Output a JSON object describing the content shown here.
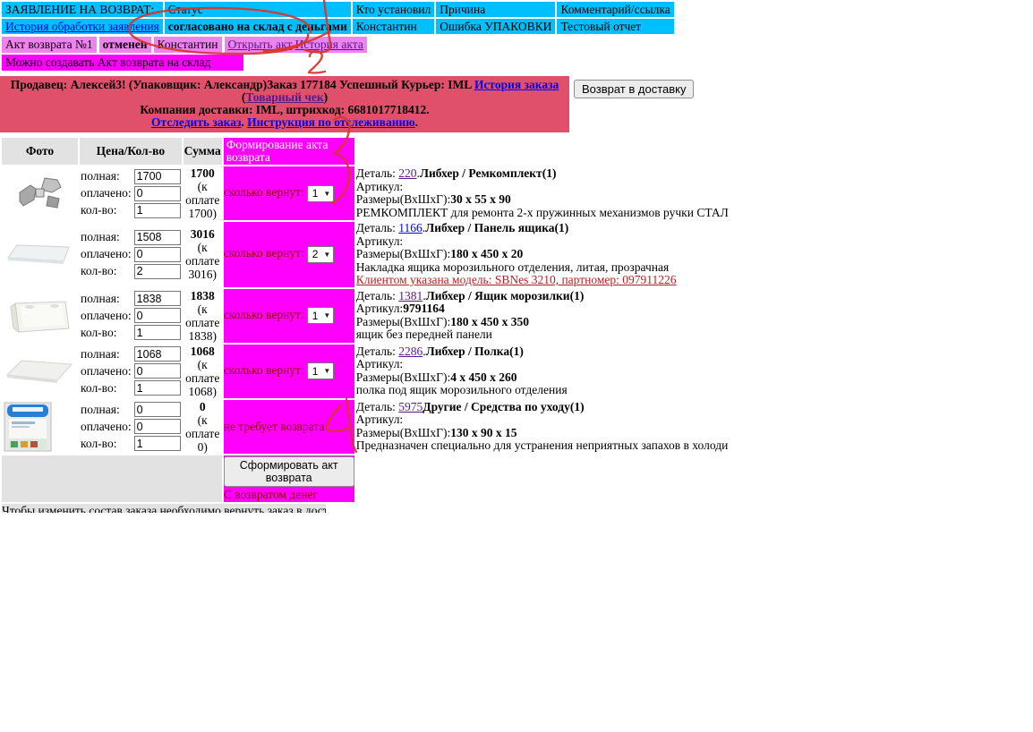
{
  "app_table": {
    "title": "ЗАЯВЛЕНИЕ НА ВОЗВРАТ:",
    "col_status": "Статус",
    "col_who": "Кто установил",
    "col_reason": "Причина",
    "col_comment": "Комментарий/ссылка",
    "history_link": "История обработки заявления",
    "status_value": "согласовано на склад с деньгами",
    "who_value": "Константин",
    "reason_value": "Ошибка УПАКОВКИ",
    "comment_value": "Тестовый отчет"
  },
  "act_table": {
    "act_label": "Акт возврата №1",
    "act_status": "отменен",
    "act_who": "Константин",
    "open_act_link": "Открыть акт",
    "act_history_link": "История акта",
    "can_create_text": "Можно создавать Акт возврата на склад"
  },
  "banner": {
    "line1_text": "Продавец: Алексей3! (Упаковщик: Александр)Заказ 177184 Успешный Курьер: IML ",
    "order_history_link": "История заказа",
    "paren_open": " (",
    "receipt_link": "Товарный чек",
    "paren_close": ")",
    "line2": "Компания доставки: IML, штрихкод: 6681017718412.",
    "track_link": "Отследить заказ",
    "dot1": ". ",
    "instruction_link": "Инструкция по отслеживанию",
    "dot2": "."
  },
  "return_to_delivery_button": "Возврат в доставку",
  "items": {
    "headers": [
      "Фото",
      "Цена/Кол-во",
      "Сумма",
      "Формирование акта возврата"
    ],
    "labels": {
      "full": "полная:",
      "paid": "оплачено:",
      "qty": "кол-во:",
      "ret_qty": "сколько вернут:",
      "detail": "Деталь: ",
      "sku": "Артикул:",
      "dims": "Размеры(ВхШхГ):"
    },
    "rows": [
      {
        "photo": "brackets-photo",
        "full": "1700",
        "paid": "0",
        "qty": "1",
        "sum": "1700",
        "sum_note": "(к оплате 1700)",
        "ret": "1",
        "detail_link": "220",
        "detail_sep": ".",
        "detail_name": "Либхер / Ремкомплект(1)",
        "visited": true,
        "sku": "",
        "dims": "30 x 55 x 90",
        "desc": "РЕМКОМПЛЕКТ для ремонта 2-х пружинных механизмов ручки СТАЛ"
      },
      {
        "photo": "glass-shelf-photo",
        "full": "1508",
        "paid": "0",
        "qty": "2",
        "sum": "3016",
        "sum_note": "(к оплате 3016)",
        "ret": "2",
        "detail_link": "1166",
        "detail_sep": ".",
        "detail_name": "Либхер / Панель ящика(1)",
        "visited": false,
        "sku": "",
        "dims": "180 x 450 x 20",
        "desc": "Накладка ящика морозильного отделения, литая, прозрачная",
        "client_model": "Клиентом указана модель: SBNes 3210, партномер: 097911226"
      },
      {
        "photo": "freezer-drawer-photo",
        "full": "1838",
        "paid": "0",
        "qty": "1",
        "sum": "1838",
        "sum_note": "(к оплате 1838)",
        "ret": "1",
        "detail_link": "1381",
        "detail_sep": ".",
        "detail_name": "Либхер / Ящик морозилки(1)",
        "visited": true,
        "sku": "9791164",
        "dims": "180 x 450 x 350",
        "desc": "ящик без передней панели"
      },
      {
        "photo": "flat-shelf-photo",
        "full": "1068",
        "paid": "0",
        "qty": "1",
        "sum": "1068",
        "sum_note": "(к оплате 1068)",
        "ret": "1",
        "detail_link": "2286",
        "detail_sep": ".",
        "detail_name": "Либхер / Полка(1)",
        "visited": true,
        "sku": "",
        "dims": "4 x 450 x 260",
        "desc": "полка под ящик морозильного отделения"
      },
      {
        "photo": "care-package-photo",
        "full": "0",
        "paid": "0",
        "qty": "1",
        "sum": "0",
        "sum_note": "(к оплате 0)",
        "no_return_text": "не требует возврата",
        "detail_link": "5975",
        "detail_sep": "",
        "detail_name": "Другие / Средства по уходу(1)",
        "visited": true,
        "sku": "",
        "dims": "130 x 90 x 15",
        "desc": "Предназначен специально для устранения неприятных запахов в холоди"
      }
    ]
  },
  "footer": {
    "form_act_button": "Сформировать акт возврата",
    "with_money_label": "С возвратом денег",
    "bottom_note": "Чтобы изменить состав заказа необходимо вернуть заказ в доставку:"
  },
  "annotations": {
    "pen_color": "#d6362a",
    "marks": [
      "1",
      "2",
      "3",
      "4"
    ]
  }
}
